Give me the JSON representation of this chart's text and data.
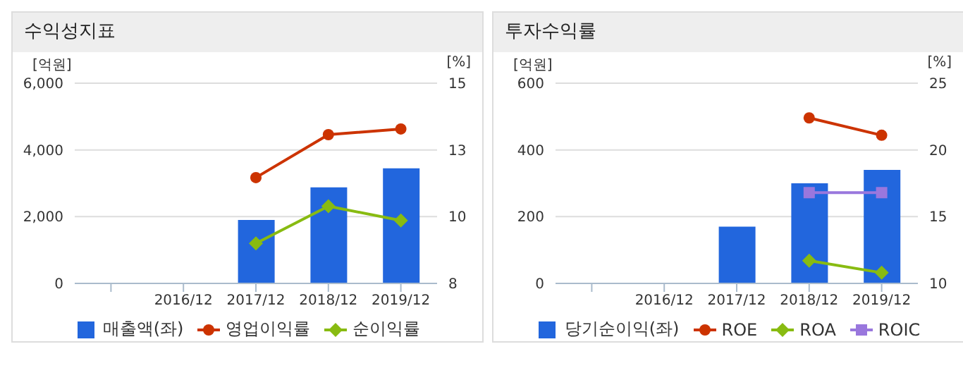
{
  "chart_data": [
    {
      "type": "bar",
      "title": "수익성지표",
      "ylabel": "[억원]",
      "y2label": "[%]",
      "categories": [
        null,
        "2016/12",
        "2017/12",
        "2018/12",
        "2019/12"
      ],
      "series": [
        {
          "name": "매출액(좌)",
          "color": "#2266dd",
          "values": [
            null,
            null,
            1900,
            2880,
            3450
          ]
        },
        {
          "name": "영업이익률",
          "type": "line",
          "axis": "y2",
          "marker": "circle",
          "color": "#cc3300",
          "values": [
            null,
            null,
            11.7,
            13.2,
            13.4
          ]
        },
        {
          "name": "순이익률",
          "type": "line",
          "axis": "y2",
          "marker": "diamond",
          "color": "#88bb11",
          "values": [
            null,
            null,
            9.4,
            10.7,
            10.2
          ]
        }
      ],
      "ylim": [
        0,
        6000
      ],
      "yticks": [
        0,
        {
          "value": 2000,
          "label": "2,000"
        },
        {
          "value": 4000,
          "label": "4,000"
        },
        {
          "value": 6000,
          "label": "6,000"
        }
      ],
      "y2lim": [
        8,
        15
      ],
      "y2ticks": [
        8,
        {
          "value": 10.333,
          "label": "10"
        },
        {
          "value": 12.667,
          "label": "13"
        },
        15
      ],
      "grid": "y",
      "legend": "bottom"
    },
    {
      "type": "bar",
      "title": "투자수익률",
      "ylabel": "[억원]",
      "y2label": "[%]",
      "categories": [
        null,
        "2016/12",
        "2017/12",
        "2018/12",
        "2019/12"
      ],
      "series": [
        {
          "name": "당기순이익(좌)",
          "color": "#2266dd",
          "values": [
            null,
            null,
            170,
            300,
            340
          ]
        },
        {
          "name": "ROE",
          "type": "line",
          "axis": "y2",
          "marker": "circle",
          "color": "#cc3300",
          "values": [
            null,
            null,
            null,
            22.4,
            21.1
          ]
        },
        {
          "name": "ROA",
          "type": "line",
          "axis": "y2",
          "marker": "diamond",
          "color": "#88bb11",
          "values": [
            null,
            null,
            null,
            11.7,
            10.8
          ]
        },
        {
          "name": "ROIC",
          "type": "line",
          "axis": "y2",
          "marker": "square",
          "color": "#9977dd",
          "values": [
            null,
            null,
            null,
            16.8,
            16.8
          ]
        }
      ],
      "ylim": [
        0,
        600
      ],
      "yticks": [
        0,
        200,
        400,
        600
      ],
      "y2lim": [
        10,
        25
      ],
      "y2ticks": [
        10,
        15,
        20,
        25
      ],
      "grid": "y",
      "legend": "bottom"
    }
  ]
}
